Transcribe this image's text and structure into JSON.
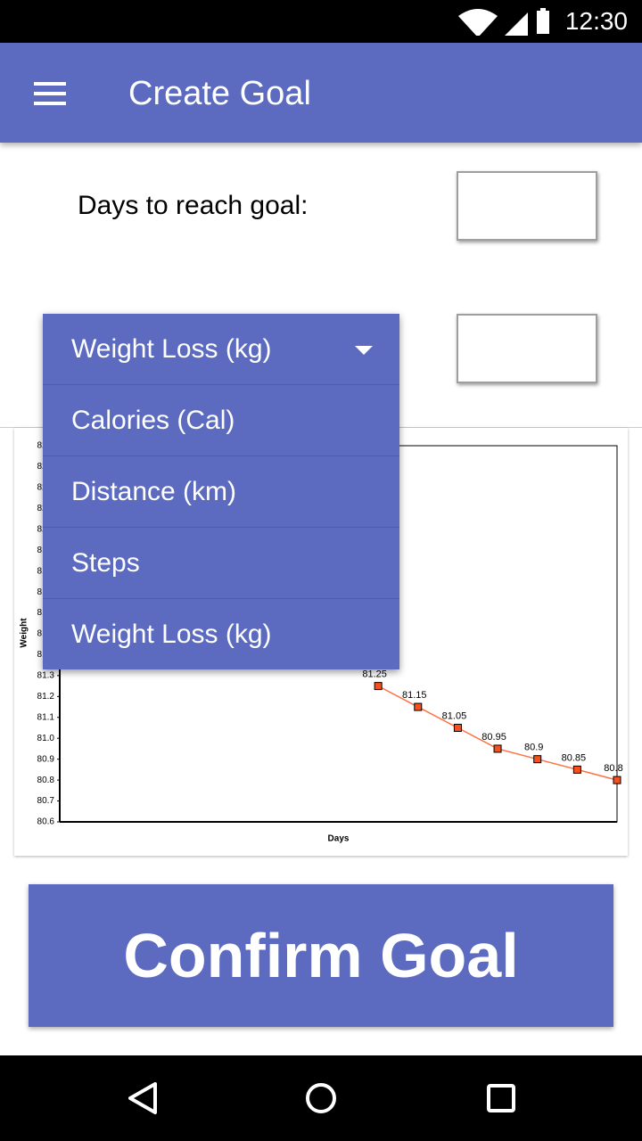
{
  "status_bar": {
    "time": "12:30"
  },
  "app_bar": {
    "title": "Create Goal"
  },
  "form": {
    "days_label": "Days to reach goal:"
  },
  "dropdown": {
    "selected": "Weight Loss (kg)",
    "options": [
      "Calories (Cal)",
      "Distance (km)",
      "Steps",
      "Weight Loss (kg)"
    ]
  },
  "chart_data": {
    "type": "line",
    "ylabel": "Weight",
    "xlabel": "Days",
    "x": [
      8,
      9,
      10,
      11,
      12,
      13,
      14
    ],
    "values": [
      81.25,
      81.15,
      81.05,
      80.95,
      80.9,
      80.85,
      80.8
    ],
    "color": "#ff7043",
    "marker_color": "#f4511e",
    "xlim": [
      0,
      14
    ],
    "ylim": [
      80.6,
      82.4
    ],
    "yticks": [
      80.6,
      80.7,
      80.8,
      80.9,
      {
        "value": 81,
        "label": "81.0"
      },
      81.1,
      81.2,
      81.3,
      81.4,
      81.5,
      81.6,
      81.7,
      81.8,
      81.9,
      {
        "value": 82,
        "label": "82.0"
      },
      82.1,
      82.2,
      82.3,
      82.4
    ]
  },
  "confirm_button": {
    "label": "Confirm Goal"
  }
}
